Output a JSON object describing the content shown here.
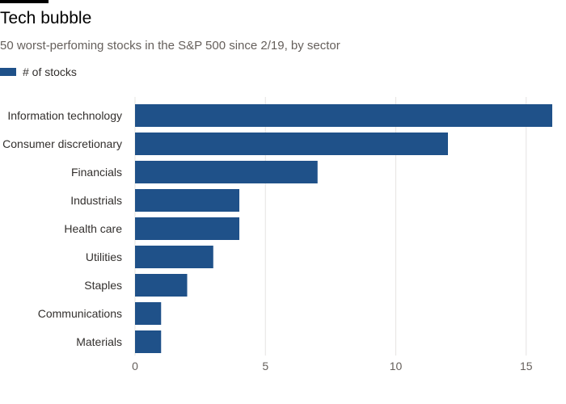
{
  "title": "Tech bubble",
  "subtitle": "50 worst-perfoming stocks in the S&P 500 since 2/19, by sector",
  "colors": {
    "bar": "#1f5189",
    "grid": "#e6e4e2",
    "axis_text": "#66605c"
  },
  "chart_data": {
    "type": "bar",
    "orientation": "horizontal",
    "categories": [
      "Information technology",
      "Consumer discretionary",
      "Financials",
      "Industrials",
      "Health care",
      "Utilities",
      "Staples",
      "Communications",
      "Materials"
    ],
    "series": [
      {
        "name": "# of stocks",
        "values": [
          16,
          12,
          7,
          4,
          4,
          3,
          2,
          1,
          1
        ]
      }
    ],
    "xticks": [
      0,
      5,
      10,
      15
    ],
    "xlim": [
      0,
      16
    ],
    "grid": true,
    "legend": "top-left"
  }
}
